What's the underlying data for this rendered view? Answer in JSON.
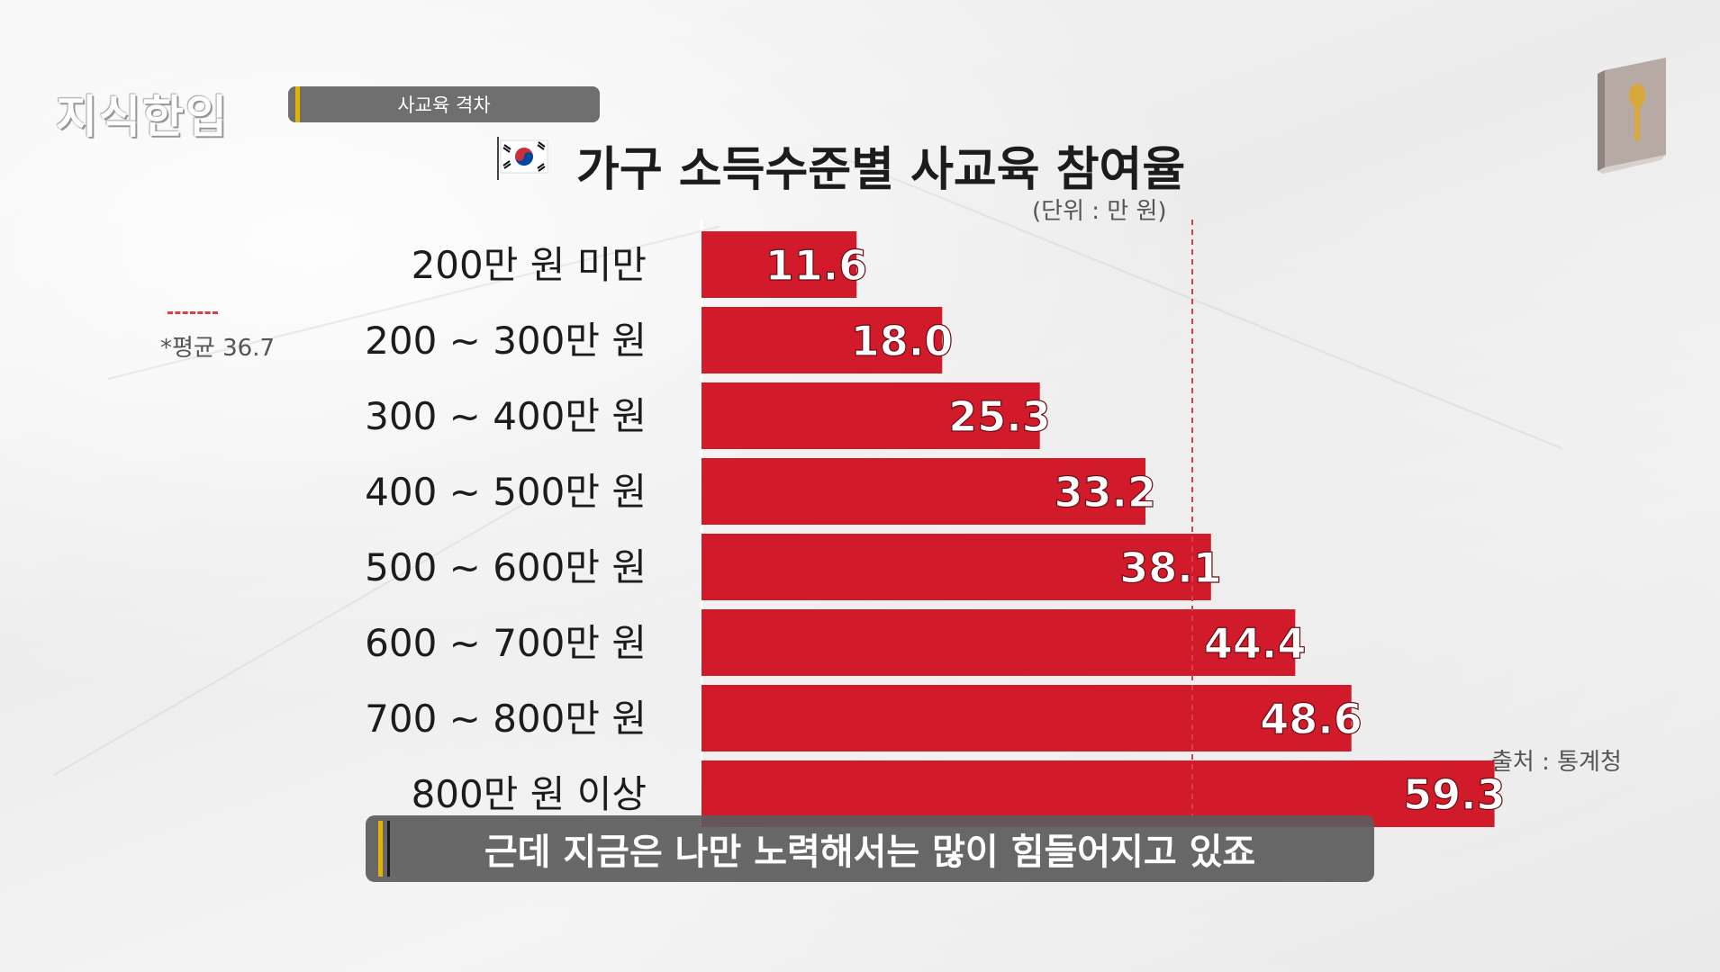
{
  "brand": {
    "logo_text": "지식한입"
  },
  "topic": {
    "label": "사교육 격차"
  },
  "chart_data": {
    "type": "bar",
    "orientation": "horizontal",
    "title": "가구 소득수준별 사교육 참여율",
    "unit_label": "(단위 : 만 원)",
    "categories": [
      "200만 원 미만",
      "200 ~ 300만 원",
      "300 ~ 400만 원",
      "400 ~ 500만 원",
      "500 ~ 600만 원",
      "600 ~ 700만 원",
      "700 ~ 800만 원",
      "800만 원 이상"
    ],
    "values": [
      11.6,
      18.0,
      25.3,
      33.2,
      38.1,
      44.4,
      48.6,
      59.3
    ],
    "value_labels": [
      "11.6",
      "18.0",
      "25.3",
      "33.2",
      "38.1",
      "44.4",
      "48.6",
      "59.3"
    ],
    "average": {
      "value": 36.7,
      "label": "*평균 36.7"
    },
    "bar_color": "#d11a2a",
    "value_label_color": "#ffffff",
    "average_line_color": "#d6404a",
    "grid": false
  },
  "source": {
    "label": "출처 : 통계청"
  },
  "caption": {
    "text": "근데 지금은 나만 노력해서는 많이 힘들어지고 있죠"
  },
  "icons": {
    "flag": "south-korea-flag-icon",
    "book": "book-spoon-icon"
  },
  "colors": {
    "accent_yellow": "#e0b400",
    "tag_gray": "#6f6f6f"
  }
}
